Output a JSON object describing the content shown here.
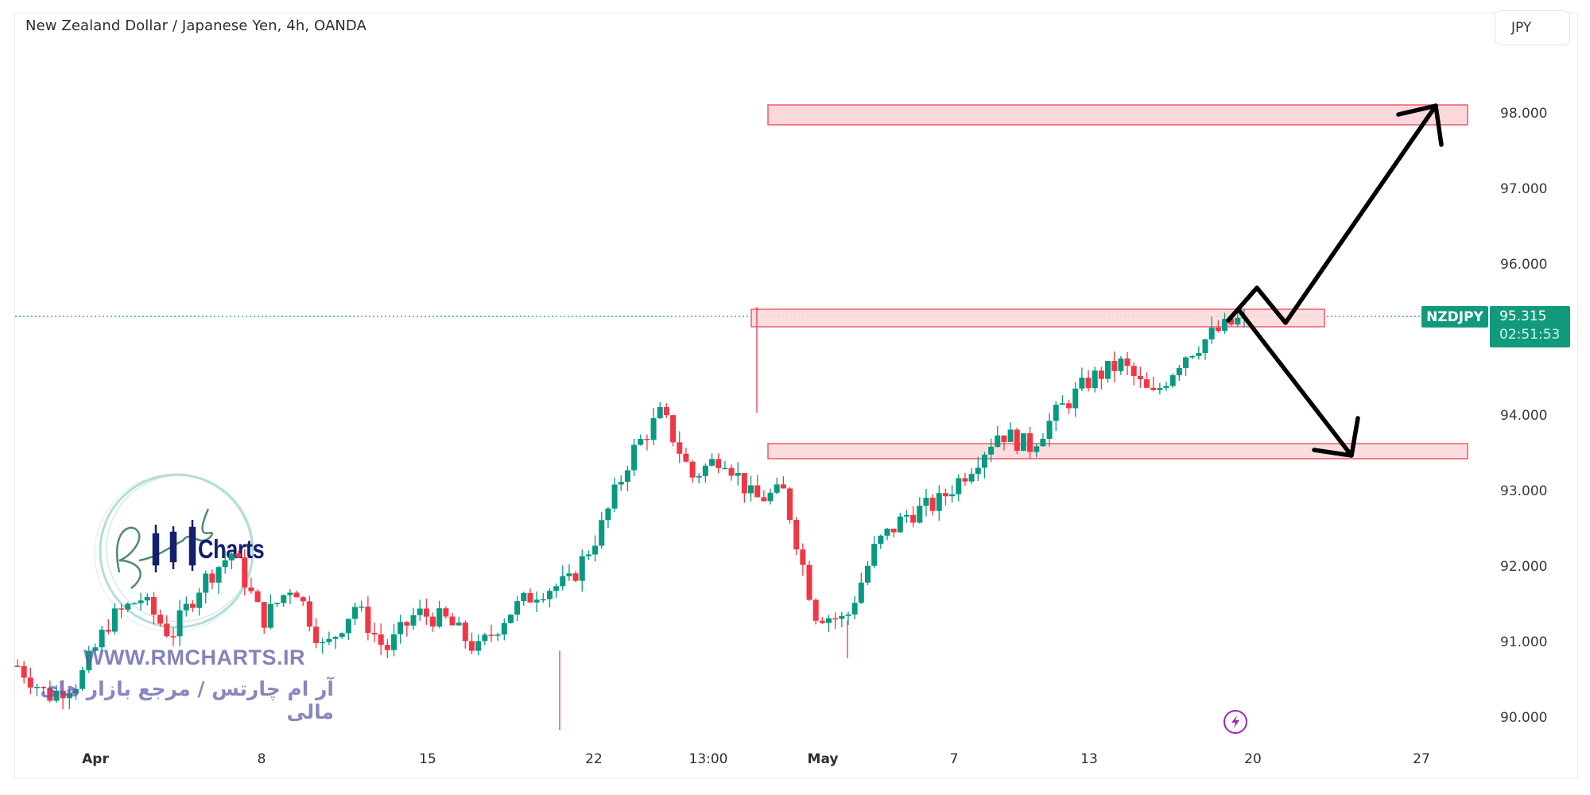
{
  "header": {
    "title": "New Zealand Dollar / Japanese Yen, 4h, OANDA",
    "currency_button": "JPY"
  },
  "price_axis": {
    "labels": [
      "98.000",
      "97.000",
      "96.000",
      "94.000",
      "93.000",
      "92.000",
      "91.000",
      "90.000"
    ]
  },
  "time_axis": {
    "labels": [
      {
        "text": "Apr",
        "bold": true
      },
      {
        "text": "8",
        "bold": false
      },
      {
        "text": "15",
        "bold": false
      },
      {
        "text": "22",
        "bold": false
      },
      {
        "text": "13:00",
        "bold": false
      },
      {
        "text": "May",
        "bold": true
      },
      {
        "text": "7",
        "bold": false
      },
      {
        "text": "13",
        "bold": false
      },
      {
        "text": "20",
        "bold": false
      },
      {
        "text": "27",
        "bold": false
      }
    ]
  },
  "last_price": {
    "symbol": "NZDJPY",
    "price": "95.315",
    "countdown": "02:51:53"
  },
  "watermark": {
    "logo_text": "Charts",
    "url": "WWW.RMCHARTS.IR",
    "persian": "آر ام چارتس / مرجع بازار های مالی"
  },
  "icons": {
    "events": "lightning-icon"
  },
  "colors": {
    "up": "#089981",
    "down": "#f23645",
    "zone_fill": "#fcd8dc",
    "zone_border": "#f05a66",
    "price_tag": "#129a7c",
    "arrow": "#000000",
    "event_icon": "#9c27b0"
  },
  "chart_data": {
    "type": "candlestick",
    "title": "New Zealand Dollar / Japanese Yen, 4h, OANDA",
    "symbol": "NZDJPY",
    "timeframe": "4h",
    "ylabel": "JPY",
    "ylim": [
      89.6,
      98.8
    ],
    "yticks": [
      90,
      91,
      92,
      93,
      94,
      95,
      96,
      97,
      98
    ],
    "xticks": [
      "Apr",
      "8",
      "15",
      "22",
      "13:00",
      "May",
      "7",
      "13",
      "20",
      "27"
    ],
    "last_price": 95.315,
    "approx_close_path": [
      {
        "x": "Apr 1",
        "close": 90.7
      },
      {
        "x": "Apr 2",
        "close": 90.3
      },
      {
        "x": "Apr 4",
        "close": 90.5
      },
      {
        "x": "Apr 5",
        "close": 91.3
      },
      {
        "x": "Apr 6",
        "close": 91.6
      },
      {
        "x": "Apr 8",
        "close": 91.1
      },
      {
        "x": "Apr 10",
        "close": 91.8
      },
      {
        "x": "Apr 11",
        "close": 92.2
      },
      {
        "x": "Apr 12",
        "close": 91.3
      },
      {
        "x": "Apr 13",
        "close": 91.8
      },
      {
        "x": "Apr 15",
        "close": 90.9
      },
      {
        "x": "Apr 16",
        "close": 91.5
      },
      {
        "x": "Apr 17",
        "close": 90.9
      },
      {
        "x": "Apr 18",
        "close": 91.4
      },
      {
        "x": "Apr 19",
        "close": 91.3
      },
      {
        "x": "Apr 22",
        "close": 90.9
      },
      {
        "x": "Apr 23",
        "close": 91.4
      },
      {
        "x": "Apr 24",
        "close": 91.7
      },
      {
        "x": "Apr 25",
        "close": 91.8
      },
      {
        "x": "Apr 26",
        "close": 92.5
      },
      {
        "x": "Apr 27",
        "close": 93.5
      },
      {
        "x": "Apr 29",
        "close": 94.05
      },
      {
        "x": "Apr 29 13:00",
        "close": 93.2
      },
      {
        "x": "Apr 30",
        "close": 93.5
      },
      {
        "x": "May 1",
        "close": 92.9
      },
      {
        "x": "May 2",
        "close": 93.0
      },
      {
        "x": "May 2b",
        "close": 91.4
      },
      {
        "x": "May 3",
        "close": 91.3
      },
      {
        "x": "May 6",
        "close": 92.3
      },
      {
        "x": "May 7",
        "close": 92.7
      },
      {
        "x": "May 8",
        "close": 92.85
      },
      {
        "x": "May 9",
        "close": 93.3
      },
      {
        "x": "May 10",
        "close": 93.8
      },
      {
        "x": "May 13",
        "close": 93.6
      },
      {
        "x": "May 14",
        "close": 94.1
      },
      {
        "x": "May 15",
        "close": 94.5
      },
      {
        "x": "May 16",
        "close": 94.7
      },
      {
        "x": "May 16b",
        "close": 94.25
      },
      {
        "x": "May 17",
        "close": 94.8
      },
      {
        "x": "May 18",
        "close": 95.1
      },
      {
        "x": "May 20",
        "close": 95.315
      }
    ],
    "annotations": [
      {
        "type": "zone",
        "label": "upper resistance zone",
        "from_price": 95.2,
        "to_price": 95.45
      },
      {
        "type": "zone",
        "label": "support zone",
        "from_price": 93.5,
        "to_price": 93.7
      },
      {
        "type": "zone",
        "label": "target zone",
        "from_price": 97.87,
        "to_price": 98.12
      },
      {
        "type": "arrow",
        "direction": "up",
        "target": 98.0
      },
      {
        "type": "arrow",
        "direction": "down",
        "target": 93.5
      }
    ]
  }
}
